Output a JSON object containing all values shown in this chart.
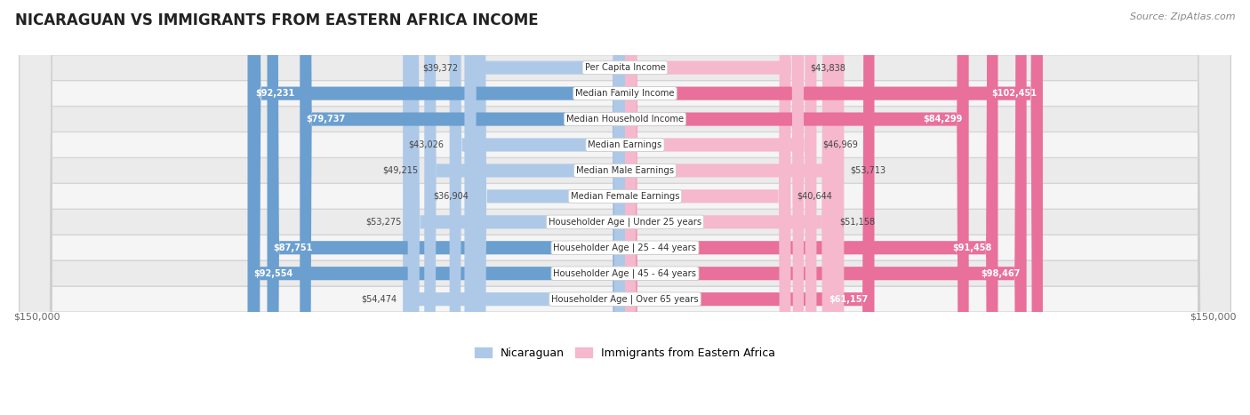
{
  "title": "NICARAGUAN VS IMMIGRANTS FROM EASTERN AFRICA INCOME",
  "source": "Source: ZipAtlas.com",
  "categories": [
    "Per Capita Income",
    "Median Family Income",
    "Median Household Income",
    "Median Earnings",
    "Median Male Earnings",
    "Median Female Earnings",
    "Householder Age | Under 25 years",
    "Householder Age | 25 - 44 years",
    "Householder Age | 45 - 64 years",
    "Householder Age | Over 65 years"
  ],
  "nicaraguan_values": [
    39372,
    92231,
    79737,
    43026,
    49215,
    36904,
    53275,
    87751,
    92554,
    54474
  ],
  "eastern_africa_values": [
    43838,
    102451,
    84299,
    46969,
    53713,
    40644,
    51158,
    91458,
    98467,
    61157
  ],
  "nicaraguan_color_light": "#aec9e8",
  "nicaraguan_color_dark": "#6b9fcf",
  "eastern_africa_color_light": "#f5b8cc",
  "eastern_africa_color_dark": "#e8709a",
  "row_bg_light": "#f5f5f5",
  "row_bg_dark": "#e8e8e8",
  "max_val": 150000,
  "bar_height": 0.55,
  "nic_threshold": 60000,
  "ea_threshold": 60000,
  "legend_label1": "Nicaraguan",
  "legend_label2": "Immigrants from Eastern Africa",
  "axis_label_left": "$150,000",
  "axis_label_right": "$150,000"
}
